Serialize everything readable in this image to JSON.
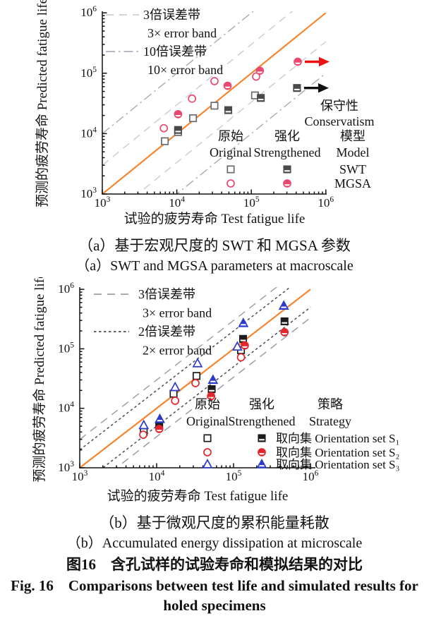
{
  "figure_caption": {
    "cn": "图16　含孔试样的试验寿命和模拟结果的对比",
    "en_line1": "Fig. 16　Comparisons between test life and simulated results for",
    "en_line2": "holed specimens"
  },
  "chart_data": [
    {
      "id": "a",
      "type": "scatter",
      "xscale": "log",
      "yscale": "log",
      "xlim": [
        1000,
        1000000
      ],
      "ylim": [
        1000,
        1000000
      ],
      "xticks": [
        1000,
        10000,
        100000,
        1000000
      ],
      "yticks": [
        1000,
        10000,
        100000,
        1000000
      ],
      "xlabel": "试验的疲劳寿命 Test fatigue life",
      "ylabel": "预测的疲劳寿命 Predicted fatigue life",
      "caption_cn": "（a）基于宏观尺度的 SWT 和 MGSA 参数",
      "caption_en": "（a）SWT and MGSA parameters at macroscale",
      "identity_line": {
        "color": "#f8842e"
      },
      "error_bands": [
        {
          "factor": 3,
          "style": "dashed",
          "color": "#c9ced7",
          "legend_cn": "3倍误差带",
          "legend_en": "3× error band"
        },
        {
          "factor": 10,
          "style": "dashdot",
          "color": "#a9afb9",
          "legend_cn": "10倍误差带",
          "legend_en": "10× error band"
        }
      ],
      "series": [
        {
          "name": "SWT Original",
          "marker": "square",
          "variant": "open",
          "color": "#6b6b6b",
          "points": [
            [
              6900,
              7500
            ],
            [
              10400,
              10600
            ],
            [
              16500,
              18000
            ],
            [
              32000,
              29000
            ],
            [
              112000,
              43000
            ]
          ]
        },
        {
          "name": "SWT Strengthened",
          "marker": "square",
          "variant": "half",
          "color": "#4a4a4a",
          "points": [
            [
              10400,
              11500
            ],
            [
              49000,
              24500
            ],
            [
              134000,
              39000
            ],
            [
              410000,
              57000
            ]
          ],
          "arrow_color": "#101010"
        },
        {
          "name": "MGSA Original",
          "marker": "circle",
          "variant": "open",
          "color": "#e9496f",
          "points": [
            [
              6700,
              12300
            ],
            [
              16000,
              38000
            ],
            [
              32000,
              74000
            ],
            [
              116000,
              88000
            ]
          ]
        },
        {
          "name": "MGSA Strengthened",
          "marker": "circle",
          "variant": "half",
          "color": "#e9496f",
          "points": [
            [
              10400,
              21000
            ],
            [
              48000,
              62000
            ],
            [
              130000,
              110000
            ],
            [
              420000,
              155000
            ]
          ],
          "arrow_color": "#ee1111"
        }
      ],
      "annotation": {
        "cn": "保守性",
        "en": "Conservatism"
      },
      "inner_legend": {
        "col_original_cn": "原始",
        "col_original_en": "Original",
        "col_strengthened_cn": "强化",
        "col_strengthened_en": "Strengthened",
        "group_cn": "模型",
        "group_en": "Model",
        "rows": [
          {
            "marker": "square",
            "label": "SWT"
          },
          {
            "marker": "circle",
            "label": "MGSA"
          }
        ]
      }
    },
    {
      "id": "b",
      "type": "scatter",
      "xscale": "log",
      "yscale": "log",
      "xlim": [
        1000,
        1000000
      ],
      "ylim": [
        1000,
        1000000
      ],
      "xticks": [
        1000,
        10000,
        100000,
        1000000
      ],
      "yticks": [
        1000,
        10000,
        100000,
        1000000
      ],
      "xlabel": "试验的疲劳寿命 Test fatigue life",
      "ylabel": "预测的疲劳寿命 Predicted fatigue life",
      "caption_cn": "（b）基于微观尺度的累积能量耗散",
      "caption_en": "（b）Accumulated energy dissipation at microscale",
      "identity_line": {
        "color": "#f8842e"
      },
      "error_bands": [
        {
          "factor": 3,
          "style": "dashed",
          "color": "#9aa0a7",
          "legend_cn": "3倍误差带",
          "legend_en": "3× error band"
        },
        {
          "factor": 2,
          "style": "dotted",
          "color": "#4a4e53",
          "legend_cn": "2倍误差带",
          "legend_en": "2× error band"
        }
      ],
      "series": [
        {
          "name": "Orientation set S1 Original",
          "marker": "square",
          "variant": "open",
          "color": "#1c1c1c",
          "points": [
            [
              6800,
              4000
            ],
            [
              16600,
              17600
            ],
            [
              33000,
              35000
            ],
            [
              125000,
              95000
            ]
          ]
        },
        {
          "name": "Orientation set S1 Strengthened",
          "marker": "square",
          "variant": "half",
          "color": "#1c1c1c",
          "points": [
            [
              10800,
              5200
            ],
            [
              52000,
              21000
            ],
            [
              133000,
              147000
            ],
            [
              460000,
              290000
            ]
          ]
        },
        {
          "name": "Orientation set S2 Original",
          "marker": "circle",
          "variant": "open",
          "color": "#e2262e",
          "points": [
            [
              6700,
              3600
            ],
            [
              17400,
              13400
            ],
            [
              32000,
              26500
            ],
            [
              125000,
              72000
            ]
          ]
        },
        {
          "name": "Orientation set S2 Strengthened",
          "marker": "circle",
          "variant": "half",
          "color": "#e2262e",
          "points": [
            [
              10800,
              4500
            ],
            [
              51000,
              16000
            ],
            [
              140000,
              114000
            ],
            [
              460000,
              190000
            ]
          ]
        },
        {
          "name": "Orientation set S3 Original",
          "marker": "triangle",
          "variant": "open",
          "color": "#2b3bca",
          "points": [
            [
              6800,
              5200
            ],
            [
              17400,
              22700
            ],
            [
              34000,
              57000
            ],
            [
              112000,
              109000
            ]
          ]
        },
        {
          "name": "Orientation set S3 Strengthened",
          "marker": "triangle",
          "variant": "half",
          "color": "#2b3bca",
          "points": [
            [
              11000,
              6600
            ],
            [
              54000,
              30000
            ],
            [
              134000,
              270000
            ],
            [
              450000,
              530000
            ]
          ]
        }
      ],
      "inner_legend": {
        "col_original_cn": "原始",
        "col_original_en": "Original",
        "col_strengthened_cn": "强化",
        "col_strengthened_en": "Strengthened",
        "group_cn": "策略",
        "group_en": "Strategy",
        "rows": [
          {
            "marker": "square",
            "label": "取向集 Orientation set S₁"
          },
          {
            "marker": "circle",
            "label": "取向集 Orientation set S₂"
          },
          {
            "marker": "triangle",
            "label": "取向集 Orientation set S₃"
          }
        ]
      }
    }
  ]
}
